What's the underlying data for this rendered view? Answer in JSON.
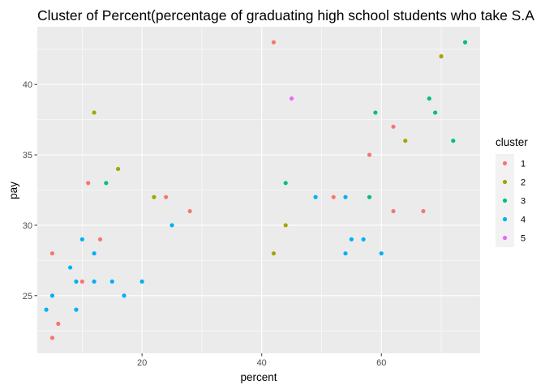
{
  "chart_data": {
    "type": "scatter",
    "title": "Cluster of Percent(percentage of graduating high school students who take S.A",
    "xlabel": "percent",
    "ylabel": "pay",
    "xlim": [
      2.5,
      76.5
    ],
    "ylim": [
      20.9,
      44.1
    ],
    "x_ticks": [
      20,
      40,
      60
    ],
    "y_ticks": [
      25,
      30,
      35,
      40
    ],
    "grid": true,
    "legend": {
      "title": "cluster",
      "position": "right",
      "entries": [
        "1",
        "2",
        "3",
        "4",
        "5"
      ]
    },
    "colors": {
      "1": "#F8766D",
      "2": "#A3A500",
      "3": "#00BF7D",
      "4": "#00B0F6",
      "5": "#E76BF3",
      "panel": "#EBEBEB",
      "grid_major": "#FFFFFF"
    },
    "series": [
      {
        "name": "1",
        "points": [
          [
            5,
            22
          ],
          [
            5,
            28
          ],
          [
            6,
            23
          ],
          [
            10,
            26
          ],
          [
            11,
            33
          ],
          [
            13,
            29
          ],
          [
            24,
            32
          ],
          [
            28,
            31
          ],
          [
            42,
            43
          ],
          [
            52,
            32
          ],
          [
            58,
            35
          ],
          [
            62,
            37
          ],
          [
            62,
            31
          ],
          [
            67,
            31
          ]
        ]
      },
      {
        "name": "2",
        "points": [
          [
            12,
            38
          ],
          [
            16,
            34
          ],
          [
            22,
            32
          ],
          [
            42,
            28
          ],
          [
            44,
            30
          ],
          [
            64,
            36
          ],
          [
            70,
            42
          ]
        ]
      },
      {
        "name": "3",
        "points": [
          [
            14,
            33
          ],
          [
            44,
            33
          ],
          [
            58,
            32
          ],
          [
            59,
            38
          ],
          [
            68,
            39
          ],
          [
            69,
            38
          ],
          [
            72,
            36
          ],
          [
            74,
            43
          ]
        ]
      },
      {
        "name": "4",
        "points": [
          [
            4,
            24
          ],
          [
            5,
            25
          ],
          [
            8,
            27
          ],
          [
            9,
            24
          ],
          [
            9,
            26
          ],
          [
            10,
            29
          ],
          [
            12,
            26
          ],
          [
            12,
            28
          ],
          [
            15,
            26
          ],
          [
            17,
            25
          ],
          [
            20,
            26
          ],
          [
            25,
            30
          ],
          [
            49,
            32
          ],
          [
            54,
            32
          ],
          [
            54,
            28
          ],
          [
            55,
            29
          ],
          [
            57,
            29
          ],
          [
            60,
            28
          ]
        ]
      },
      {
        "name": "5",
        "points": [
          [
            45,
            39
          ]
        ]
      }
    ]
  }
}
